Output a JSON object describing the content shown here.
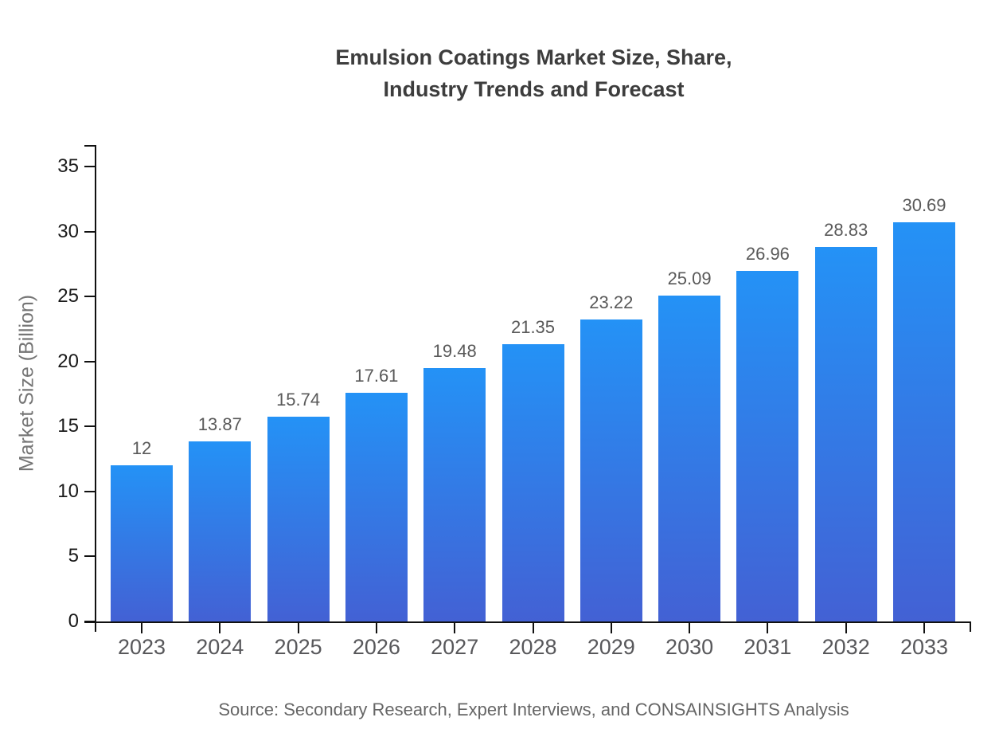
{
  "page": {
    "source_note": "Source: Secondary Research, Expert Interviews, and CONSAINSIGHTS Analysis"
  },
  "chart_data": {
    "type": "bar",
    "title": "Emulsion Coatings Market Size, Share,\nIndustry Trends and Forecast",
    "xlabel": "",
    "ylabel": "Market Size (Billion)",
    "categories": [
      "2023",
      "2024",
      "2025",
      "2026",
      "2027",
      "2028",
      "2029",
      "2030",
      "2031",
      "2032",
      "2033"
    ],
    "values": [
      12,
      13.87,
      15.74,
      17.61,
      19.48,
      21.35,
      23.22,
      25.09,
      26.96,
      28.83,
      30.69
    ],
    "value_labels": [
      "12",
      "13.87",
      "15.74",
      "17.61",
      "19.48",
      "21.35",
      "23.22",
      "25.09",
      "26.96",
      "28.83",
      "30.69"
    ],
    "yticks": [
      0,
      5,
      10,
      15,
      20,
      25,
      30,
      35
    ],
    "ylim": [
      0,
      36.7
    ],
    "grid": false,
    "legend": "none",
    "colors": {
      "bar_gradient_top": "#2492f6",
      "bar_gradient_bottom": "#4361d4",
      "axis": "#111111",
      "tick_label": "#1a1a1a",
      "category_label": "#58585b",
      "value_label": "#595959",
      "title": "#3d3d3d",
      "axis_title": "#757575",
      "source": "#666666"
    }
  }
}
